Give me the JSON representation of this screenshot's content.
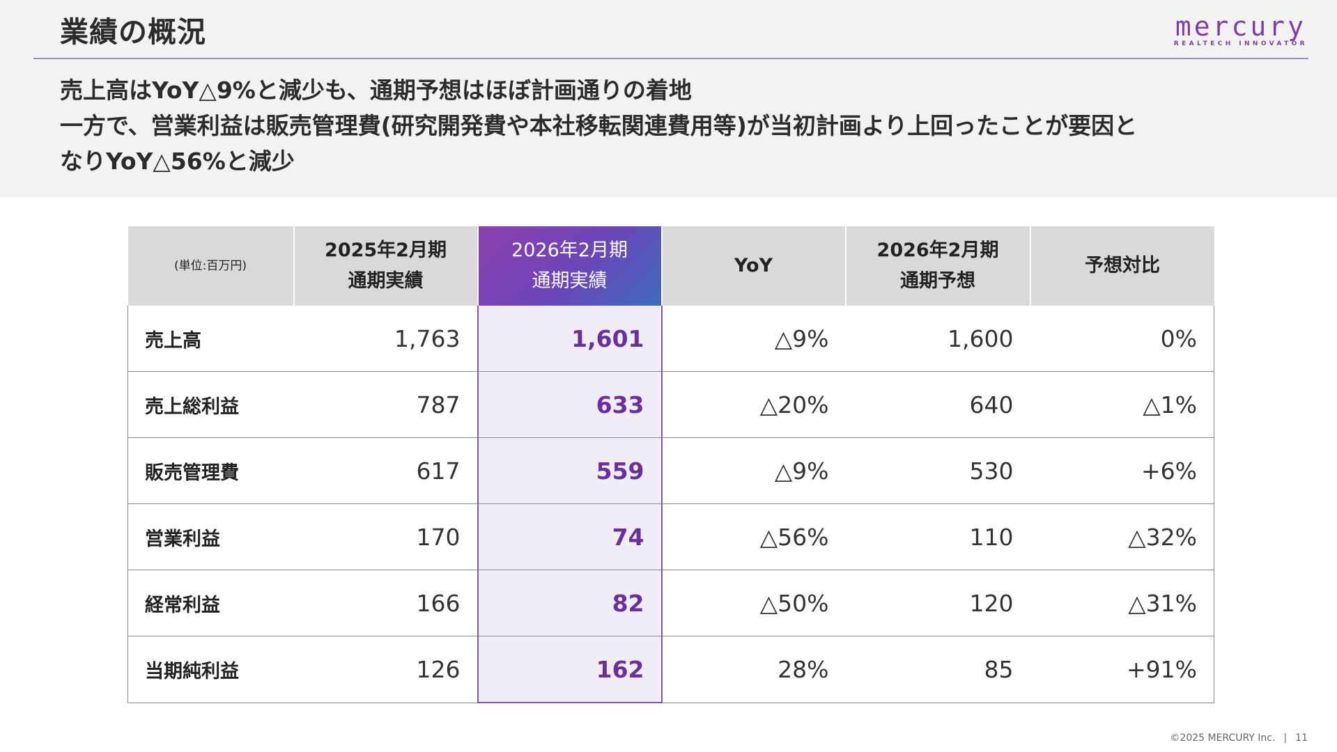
{
  "header": {
    "title": "業績の概況",
    "logo": {
      "word": "mercury",
      "tagline": "REALTECH INNOVATOR"
    }
  },
  "summary": {
    "lines": [
      "売上高はYoY△9%と減少も、通期予想はほぼ計画通りの着地",
      "一方で、営業利益は販売管理費(研究開発費や本社移転関連費用等)が当初計画より上回ったことが要因と",
      "なりYoY△56%と減少"
    ]
  },
  "table": {
    "unit_label": "(単位:百万円)",
    "columns": [
      {
        "line1": "2025年2月期",
        "line2": "通期実績"
      },
      {
        "line1": "2026年2月期",
        "line2": "通期実績"
      },
      {
        "line1": "YoY",
        "line2": ""
      },
      {
        "line1": "2026年2月期",
        "line2": "通期予想"
      },
      {
        "line1": "予想対比",
        "line2": ""
      }
    ],
    "rows": [
      {
        "label": "売上高",
        "cells": [
          "1,763",
          "1,601",
          "△9%",
          "1,600",
          "0%"
        ]
      },
      {
        "label": "売上総利益",
        "cells": [
          "787",
          "633",
          "△20%",
          "640",
          "△1%"
        ]
      },
      {
        "label": "販売管理費",
        "cells": [
          "617",
          "559",
          "△9%",
          "530",
          "+6%"
        ]
      },
      {
        "label": "営業利益",
        "cells": [
          "170",
          "74",
          "△56%",
          "110",
          "△32%"
        ]
      },
      {
        "label": "経常利益",
        "cells": [
          "166",
          "82",
          "△50%",
          "120",
          "△31%"
        ]
      },
      {
        "label": "当期純利益",
        "cells": [
          "126",
          "162",
          "28%",
          "85",
          "+91%"
        ]
      }
    ],
    "highlight_color": "#6a2f9e"
  },
  "footer": {
    "copyright": "©2025 MERCURY Inc.",
    "separator": "|",
    "page_number": "11"
  }
}
